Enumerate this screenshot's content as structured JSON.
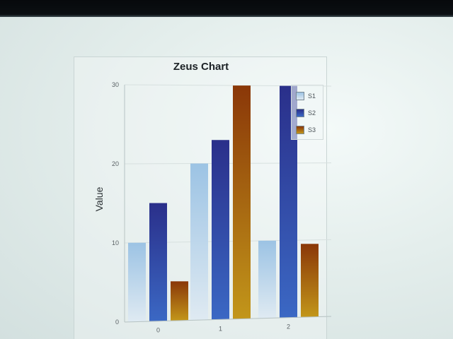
{
  "chart_data": {
    "type": "bar",
    "title": "Zeus Chart",
    "xlabel": "",
    "ylabel": "Value",
    "categories": [
      "0",
      "1",
      "2"
    ],
    "yticks": [
      "0",
      "10",
      "20",
      "30"
    ],
    "ylim": [
      0,
      30
    ],
    "grid": true,
    "legend_position": "top-right",
    "series": [
      {
        "name": "S1",
        "values": [
          10,
          20,
          10
        ]
      },
      {
        "name": "S2",
        "values": [
          15,
          23,
          30
        ]
      },
      {
        "name": "S3",
        "values": [
          5,
          30,
          9.5
        ]
      }
    ],
    "colors": {
      "S1": [
        "#9cc3e4",
        "#dfeaf2"
      ],
      "S2": [
        "#2a2f8a",
        "#3b68c4"
      ],
      "S3": [
        "#8a3708",
        "#c2961a"
      ]
    }
  }
}
